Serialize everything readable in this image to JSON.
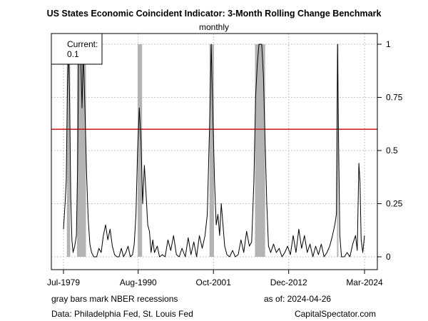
{
  "chart_data": {
    "type": "line",
    "title": "US States Economic Coincident Indicator: 3-Month Rolling Change Benchmark",
    "subtitle": "monthly",
    "x_range": [
      "1979-07",
      "2024-03"
    ],
    "x_ticks": [
      {
        "label": "Jul-1979",
        "date": "1979-07"
      },
      {
        "label": "Aug-1990",
        "date": "1990-08"
      },
      {
        "label": "Oct-2001",
        "date": "2001-10"
      },
      {
        "label": "Dec-2012",
        "date": "2012-12"
      },
      {
        "label": "Mar-2024",
        "date": "2024-03"
      }
    ],
    "y_axis": {
      "position": "right",
      "range": [
        0,
        1
      ],
      "ticks": [
        "0",
        "0.25",
        "0.5",
        "0.75",
        "1"
      ]
    },
    "grid": true,
    "threshold_line": {
      "value": 0.6,
      "color": "#cc0000"
    },
    "recession_color": "#b3b3b3",
    "line_color": "#000000",
    "recessions": [
      {
        "start": "1980-01",
        "end": "1980-07"
      },
      {
        "start": "1981-07",
        "end": "1982-11"
      },
      {
        "start": "1990-07",
        "end": "1991-03"
      },
      {
        "start": "2001-03",
        "end": "2001-11"
      },
      {
        "start": "2007-12",
        "end": "2009-06"
      },
      {
        "start": "2020-02",
        "end": "2020-04"
      }
    ],
    "series": [
      {
        "values": [
          [
            "1979-07",
            0.13
          ],
          [
            "1979-10",
            0.26
          ],
          [
            "1979-12",
            0.36
          ],
          [
            "1980-02",
            0.8
          ],
          [
            "1980-04",
            1.0
          ],
          [
            "1980-06",
            0.72
          ],
          [
            "1980-08",
            0.28
          ],
          [
            "1980-10",
            0.08
          ],
          [
            "1980-12",
            0.02
          ],
          [
            "1981-03",
            0.05
          ],
          [
            "1981-06",
            0.1
          ],
          [
            "1981-08",
            0.4
          ],
          [
            "1981-10",
            0.95
          ],
          [
            "1981-12",
            1.0
          ],
          [
            "1982-02",
            0.9
          ],
          [
            "1982-04",
            0.7
          ],
          [
            "1982-06",
            0.95
          ],
          [
            "1982-08",
            0.82
          ],
          [
            "1982-10",
            0.62
          ],
          [
            "1982-12",
            0.4
          ],
          [
            "1983-03",
            0.18
          ],
          [
            "1983-06",
            0.06
          ],
          [
            "1983-09",
            0.02
          ],
          [
            "1984-01",
            0.0
          ],
          [
            "1984-06",
            0.0
          ],
          [
            "1984-10",
            0.04
          ],
          [
            "1985-02",
            0.02
          ],
          [
            "1985-06",
            0.1
          ],
          [
            "1985-10",
            0.15
          ],
          [
            "1986-02",
            0.08
          ],
          [
            "1986-06",
            0.13
          ],
          [
            "1986-10",
            0.05
          ],
          [
            "1987-02",
            0.01
          ],
          [
            "1987-06",
            0.0
          ],
          [
            "1987-10",
            0.0
          ],
          [
            "1988-02",
            0.04
          ],
          [
            "1988-06",
            0.0
          ],
          [
            "1988-10",
            0.02
          ],
          [
            "1989-02",
            0.05
          ],
          [
            "1989-06",
            0.0
          ],
          [
            "1989-10",
            0.01
          ],
          [
            "1990-01",
            0.06
          ],
          [
            "1990-04",
            0.2
          ],
          [
            "1990-07",
            0.5
          ],
          [
            "1990-10",
            0.7
          ],
          [
            "1991-01",
            0.55
          ],
          [
            "1991-04",
            0.25
          ],
          [
            "1991-07",
            0.43
          ],
          [
            "1991-10",
            0.3
          ],
          [
            "1992-01",
            0.15
          ],
          [
            "1992-04",
            0.12
          ],
          [
            "1992-07",
            0.02
          ],
          [
            "1992-10",
            0.08
          ],
          [
            "1993-01",
            0.02
          ],
          [
            "1993-06",
            0.05
          ],
          [
            "1993-10",
            0.0
          ],
          [
            "1994-03",
            0.01
          ],
          [
            "1994-08",
            0.0
          ],
          [
            "1995-01",
            0.08
          ],
          [
            "1995-06",
            0.03
          ],
          [
            "1995-11",
            0.1
          ],
          [
            "1996-04",
            0.01
          ],
          [
            "1996-09",
            0.0
          ],
          [
            "1997-02",
            0.04
          ],
          [
            "1997-08",
            0.0
          ],
          [
            "1998-01",
            0.09
          ],
          [
            "1998-06",
            0.01
          ],
          [
            "1998-11",
            0.07
          ],
          [
            "1999-04",
            0.0
          ],
          [
            "1999-09",
            0.1
          ],
          [
            "2000-02",
            0.04
          ],
          [
            "2000-07",
            0.1
          ],
          [
            "2000-11",
            0.2
          ],
          [
            "2001-03",
            0.6
          ],
          [
            "2001-06",
            1.0
          ],
          [
            "2001-09",
            0.66
          ],
          [
            "2001-12",
            0.35
          ],
          [
            "2002-03",
            0.15
          ],
          [
            "2002-06",
            0.2
          ],
          [
            "2002-09",
            0.1
          ],
          [
            "2002-12",
            0.25
          ],
          [
            "2003-03",
            0.15
          ],
          [
            "2003-06",
            0.05
          ],
          [
            "2003-10",
            0.01
          ],
          [
            "2004-03",
            0.0
          ],
          [
            "2004-08",
            0.03
          ],
          [
            "2005-01",
            0.0
          ],
          [
            "2005-06",
            0.01
          ],
          [
            "2005-11",
            0.08
          ],
          [
            "2006-04",
            0.02
          ],
          [
            "2006-09",
            0.12
          ],
          [
            "2007-02",
            0.05
          ],
          [
            "2007-06",
            0.07
          ],
          [
            "2007-10",
            0.35
          ],
          [
            "2008-01",
            0.75
          ],
          [
            "2008-04",
            0.9
          ],
          [
            "2008-07",
            1.0
          ],
          [
            "2008-12",
            1.0
          ],
          [
            "2009-03",
            0.85
          ],
          [
            "2009-06",
            0.55
          ],
          [
            "2009-09",
            0.25
          ],
          [
            "2009-12",
            0.05
          ],
          [
            "2010-04",
            0.02
          ],
          [
            "2010-09",
            0.06
          ],
          [
            "2011-02",
            0.02
          ],
          [
            "2011-07",
            0.04
          ],
          [
            "2011-12",
            0.0
          ],
          [
            "2012-05",
            0.02
          ],
          [
            "2012-10",
            0.05
          ],
          [
            "2013-03",
            0.01
          ],
          [
            "2013-08",
            0.1
          ],
          [
            "2014-01",
            0.02
          ],
          [
            "2014-06",
            0.13
          ],
          [
            "2014-11",
            0.04
          ],
          [
            "2015-04",
            0.1
          ],
          [
            "2015-09",
            0.02
          ],
          [
            "2016-02",
            0.06
          ],
          [
            "2016-07",
            0.0
          ],
          [
            "2016-12",
            0.05
          ],
          [
            "2017-05",
            0.01
          ],
          [
            "2017-10",
            0.06
          ],
          [
            "2018-03",
            0.0
          ],
          [
            "2018-08",
            0.02
          ],
          [
            "2019-01",
            0.05
          ],
          [
            "2019-06",
            0.1
          ],
          [
            "2019-10",
            0.15
          ],
          [
            "2020-01",
            0.2
          ],
          [
            "2020-03",
            1.0
          ],
          [
            "2020-05",
            0.5
          ],
          [
            "2020-07",
            0.1
          ],
          [
            "2020-10",
            0.0
          ],
          [
            "2021-03",
            0.0
          ],
          [
            "2021-08",
            0.02
          ],
          [
            "2022-01",
            0.0
          ],
          [
            "2022-06",
            0.06
          ],
          [
            "2022-11",
            0.1
          ],
          [
            "2023-02",
            0.03
          ],
          [
            "2023-05",
            0.44
          ],
          [
            "2023-07",
            0.35
          ],
          [
            "2023-09",
            0.08
          ],
          [
            "2023-12",
            0.02
          ],
          [
            "2024-03",
            0.1
          ]
        ]
      }
    ],
    "legend": {
      "position": "top-left",
      "label": "Current:",
      "value": "0.1"
    },
    "footnotes": {
      "left_1": "gray bars mark NBER recessions",
      "right_1": "as of:  2024-04-26",
      "left_2": "Data: Philadelphia Fed, St. Louis Fed",
      "right_2": "CapitalSpectator.com"
    }
  }
}
